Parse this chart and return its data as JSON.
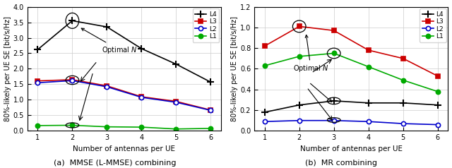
{
  "x": [
    1,
    2,
    3,
    4,
    5,
    6
  ],
  "mmse": {
    "L4": [
      2.62,
      3.55,
      3.35,
      2.65,
      2.15,
      1.57
    ],
    "L3": [
      1.61,
      1.65,
      1.45,
      1.1,
      0.95,
      0.67
    ],
    "L2": [
      1.55,
      1.62,
      1.42,
      1.08,
      0.92,
      0.66
    ],
    "L1": [
      0.17,
      0.18,
      0.13,
      0.12,
      0.06,
      0.08
    ]
  },
  "mr": {
    "L4": [
      0.18,
      0.25,
      0.29,
      0.27,
      0.27,
      0.25
    ],
    "L3": [
      0.82,
      1.01,
      0.97,
      0.78,
      0.7,
      0.53
    ],
    "L2": [
      0.09,
      0.1,
      0.1,
      0.09,
      0.07,
      0.06
    ],
    "L1": [
      0.63,
      0.72,
      0.75,
      0.62,
      0.49,
      0.38
    ]
  },
  "colors": {
    "L4": "#000000",
    "L3": "#cc0000",
    "L2": "#0000cc",
    "L1": "#00aa00"
  },
  "markers": {
    "L4": "P",
    "L3": "s",
    "L2": "o",
    "L1": "o"
  },
  "mmse_ylim": [
    0,
    4.0
  ],
  "mmse_yticks": [
    0,
    0.5,
    1.0,
    1.5,
    2.0,
    2.5,
    3.0,
    3.5,
    4.0
  ],
  "mr_ylim": [
    0,
    1.2
  ],
  "mr_yticks": [
    0,
    0.2,
    0.4,
    0.6,
    0.8,
    1.0,
    1.2
  ],
  "xlabel": "Number of antennas per UE",
  "ylabel": "80%-likely per UE SE [bit/s/Hz]",
  "caption_a": "(a)  MMSE (L-MMSE) combining",
  "caption_b": "(b)  MR combining",
  "optimal_n_label": "Optimal $N$"
}
